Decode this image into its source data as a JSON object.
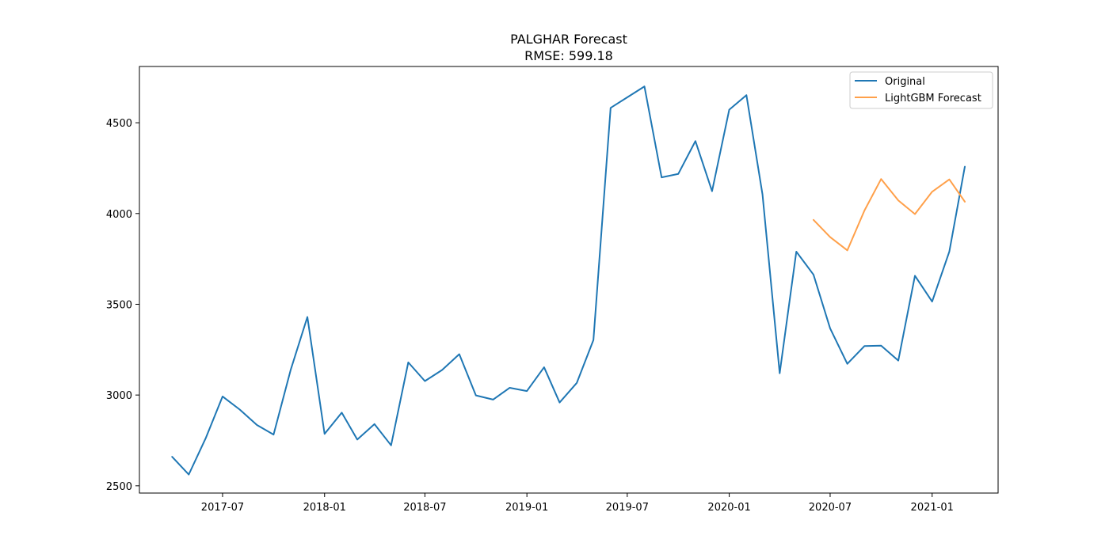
{
  "chart_data": {
    "type": "line",
    "title": "PALGHAR Forecast",
    "subtitle": "RMSE: 599.18",
    "xlabel": "",
    "ylabel": "",
    "grid": false,
    "legend_placement": "top-right",
    "xlim": [
      "2017-02-01",
      "2021-04-30"
    ],
    "ylim": [
      2460,
      4810
    ],
    "x_ticks": [
      "2017-07",
      "2018-01",
      "2018-07",
      "2019-01",
      "2019-07",
      "2020-01",
      "2020-07",
      "2021-01"
    ],
    "y_ticks": [
      2500,
      3000,
      3500,
      4000,
      4500
    ],
    "series": [
      {
        "name": "Original",
        "color": "#1f77b4",
        "x": [
          "2017-04-01",
          "2017-05-01",
          "2017-06-01",
          "2017-07-01",
          "2017-08-01",
          "2017-09-01",
          "2017-10-01",
          "2017-11-01",
          "2017-12-01",
          "2018-01-01",
          "2018-02-01",
          "2018-03-01",
          "2018-04-01",
          "2018-05-01",
          "2018-06-01",
          "2018-07-01",
          "2018-08-01",
          "2018-09-01",
          "2018-10-01",
          "2018-11-01",
          "2018-12-01",
          "2019-01-01",
          "2019-02-01",
          "2019-03-01",
          "2019-04-01",
          "2019-05-01",
          "2019-06-01",
          "2019-07-01",
          "2019-08-01",
          "2019-09-01",
          "2019-10-01",
          "2019-11-01",
          "2019-12-01",
          "2020-01-01",
          "2020-02-01",
          "2020-03-01",
          "2020-04-01",
          "2020-05-01",
          "2020-06-01",
          "2020-07-01",
          "2020-08-01",
          "2020-09-01",
          "2020-10-01",
          "2020-11-01",
          "2020-12-01",
          "2021-01-01",
          "2021-02-01",
          "2021-03-01"
        ],
        "values": [
          2660,
          2562,
          2765,
          2992,
          2920,
          2835,
          2782,
          3140,
          3430,
          2786,
          2903,
          2755,
          2840,
          2723,
          3180,
          3077,
          3138,
          3225,
          2998,
          2975,
          3040,
          3022,
          3153,
          2959,
          3067,
          3303,
          4582,
          4640,
          4700,
          4199,
          4218,
          4399,
          4123,
          4572,
          4652,
          4105,
          3120,
          3790,
          3663,
          3367,
          3172,
          3270,
          3272,
          3190,
          3657,
          3515,
          3790,
          4258
        ]
      },
      {
        "name": "LightGBM Forecast",
        "color": "#ffa04a",
        "x": [
          "2020-06-01",
          "2020-07-01",
          "2020-08-01",
          "2020-09-01",
          "2020-10-01",
          "2020-11-01",
          "2020-12-01",
          "2021-01-01",
          "2021-02-01",
          "2021-03-01"
        ],
        "values": [
          3965,
          3870,
          3797,
          4017,
          4190,
          4072,
          3997,
          4120,
          4188,
          4065
        ]
      }
    ]
  }
}
